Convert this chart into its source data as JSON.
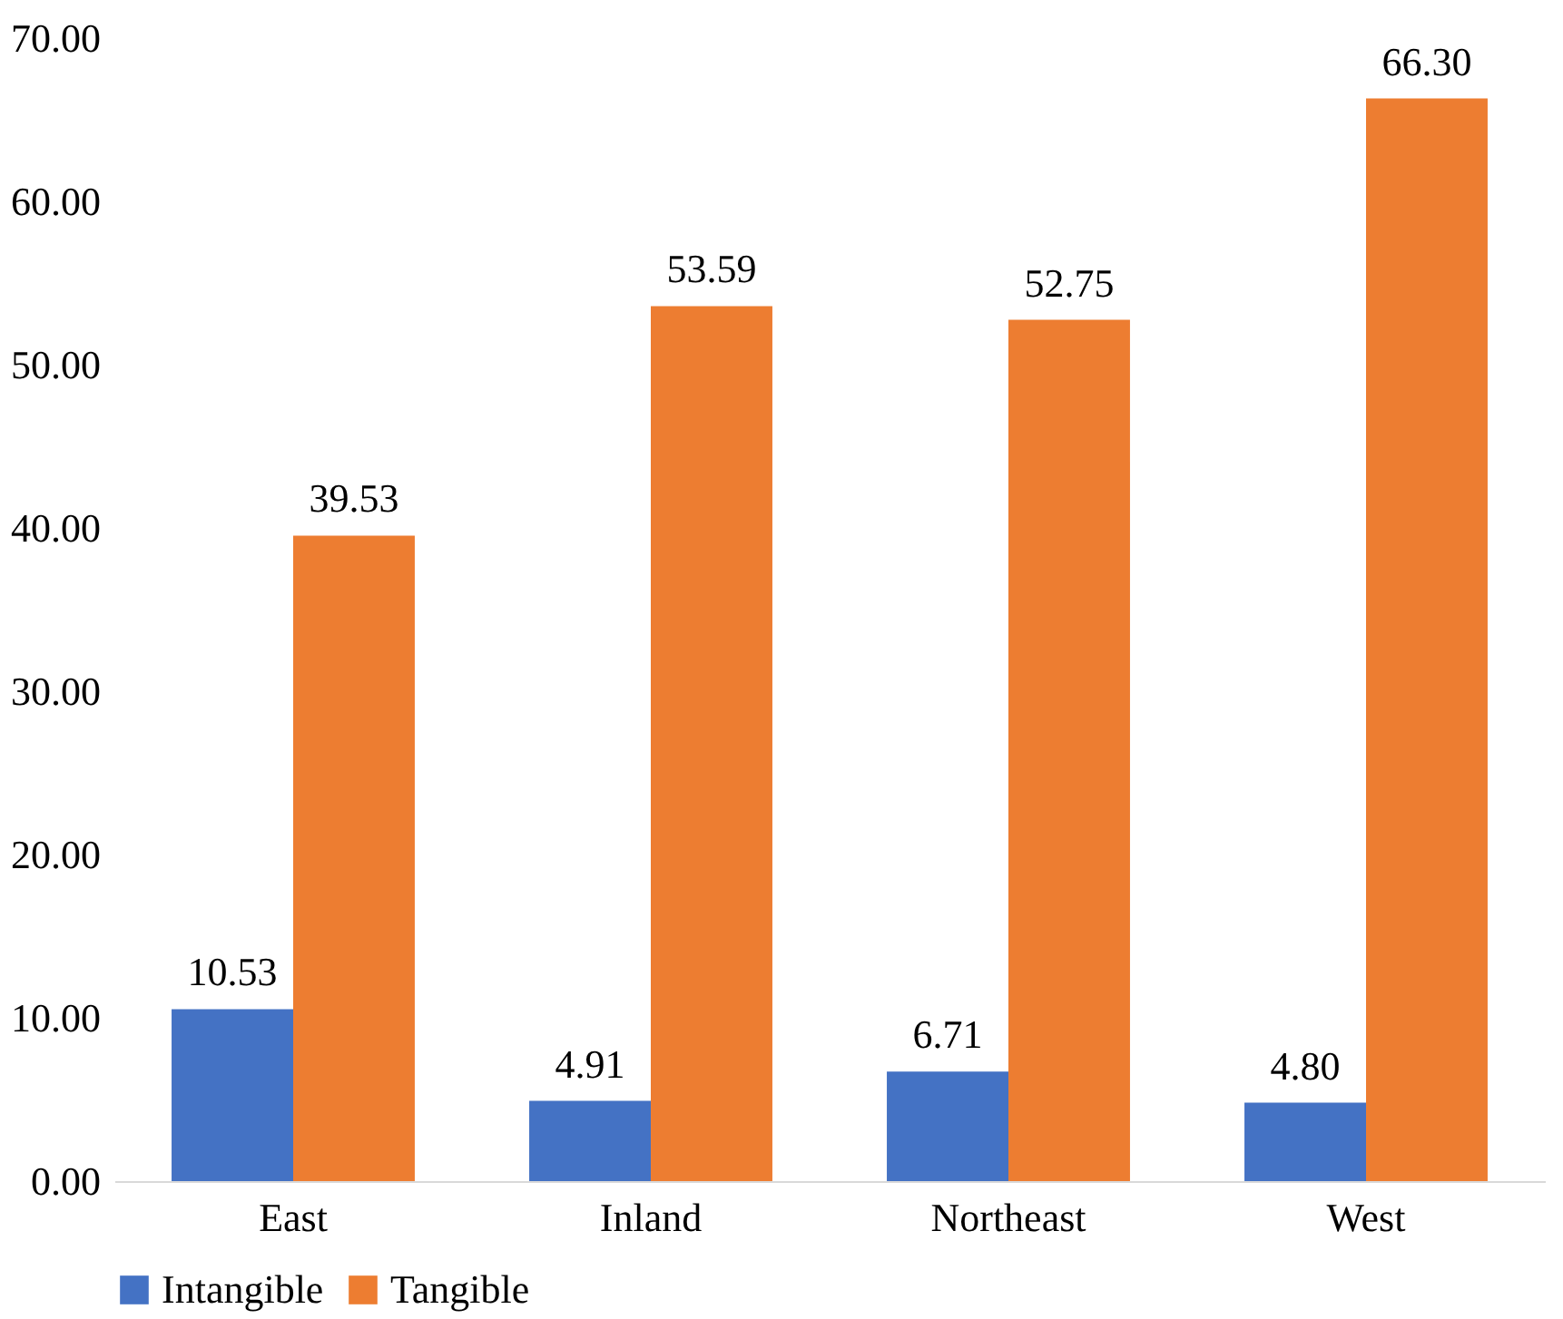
{
  "chart_data": {
    "type": "bar",
    "categories": [
      "East",
      "Inland",
      "Northeast",
      "West"
    ],
    "series": [
      {
        "name": "Intangible",
        "color": "#4472c4",
        "values": [
          10.53,
          4.91,
          6.71,
          4.8
        ],
        "value_labels": [
          "10.53",
          "4.91",
          "6.71",
          "4.80"
        ]
      },
      {
        "name": "Tangible",
        "color": "#ed7d31",
        "values": [
          39.53,
          53.59,
          52.75,
          66.3
        ],
        "value_labels": [
          "39.53",
          "53.59",
          "52.75",
          "66.30"
        ]
      }
    ],
    "ylim": [
      0,
      70
    ],
    "yticks": [
      {
        "value": 0,
        "label": "0.00"
      },
      {
        "value": 10,
        "label": "10.00"
      },
      {
        "value": 20,
        "label": "20.00"
      },
      {
        "value": 30,
        "label": "30.00"
      },
      {
        "value": 40,
        "label": "40.00"
      },
      {
        "value": 50,
        "label": "50.00"
      },
      {
        "value": 60,
        "label": "60.00"
      },
      {
        "value": 70,
        "label": "70.00"
      }
    ],
    "grid": false,
    "legend": "bottom"
  }
}
